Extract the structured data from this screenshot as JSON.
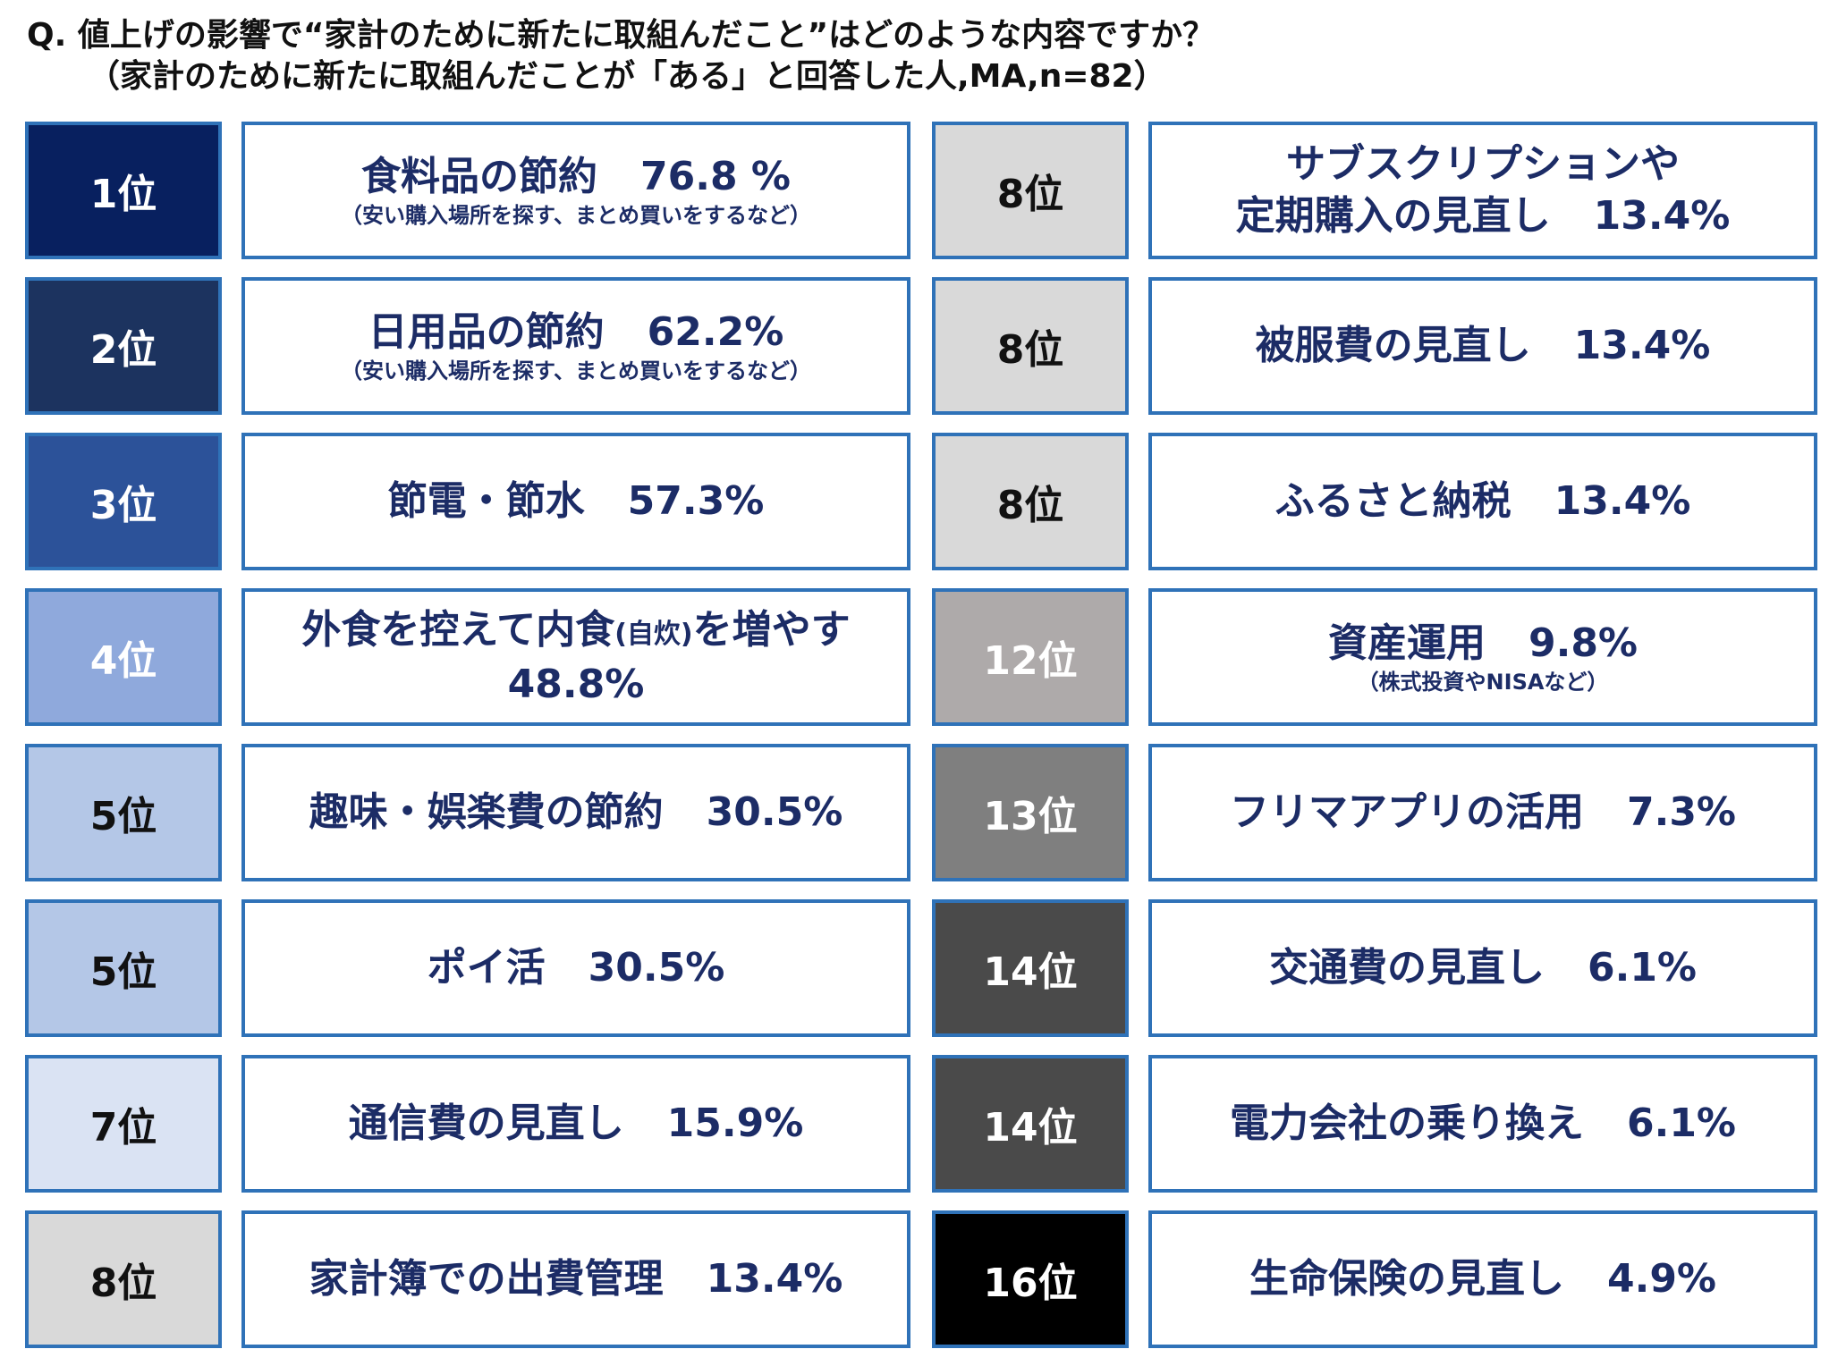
{
  "question": {
    "title": "Q. 値上げの影響で“家計のために新たに取組んだこと”はどのような内容ですか？",
    "subtitle": "（家計のために新たに取組んだことが「ある」と回答した人,MA,n=82）"
  },
  "colors": {
    "border": "#2f72b8",
    "text": "#1c2c66"
  },
  "chart_data": {
    "type": "table",
    "unit": "%",
    "n": 82,
    "items": [
      {
        "rank": "1位",
        "label": "食料品の節約",
        "value": 76.8,
        "value_text": "76.8 %",
        "note": "（安い購入場所を探す、まとめ買いをするなど）",
        "rank_bg": "#08205f",
        "rank_fg": "#ffffff"
      },
      {
        "rank": "2位",
        "label": "日用品の節約",
        "value": 62.2,
        "value_text": "62.2%",
        "note": "（安い購入場所を探す、まとめ買いをするなど）",
        "rank_bg": "#1c335f",
        "rank_fg": "#ffffff"
      },
      {
        "rank": "3位",
        "label": "節電・節水",
        "value": 57.3,
        "value_text": "57.3%",
        "note": "",
        "rank_bg": "#2c5299",
        "rank_fg": "#ffffff"
      },
      {
        "rank": "4位",
        "label": "外食を控えて内食",
        "label_paren": "(自炊)",
        "label_tail": "を増やす",
        "value": 48.8,
        "value_text": "48.8%",
        "note": "",
        "rank_bg": "#8fa9dc",
        "rank_fg": "#ffffff"
      },
      {
        "rank": "5位",
        "label": "趣味・娯楽費の節約",
        "value": 30.5,
        "value_text": "30.5%",
        "note": "",
        "rank_bg": "#b4c7e7",
        "rank_fg": "#111111"
      },
      {
        "rank": "5位",
        "label": "ポイ活",
        "value": 30.5,
        "value_text": "30.5%",
        "note": "",
        "rank_bg": "#b4c7e7",
        "rank_fg": "#111111"
      },
      {
        "rank": "7位",
        "label": "通信費の見直し",
        "value": 15.9,
        "value_text": "15.9%",
        "note": "",
        "rank_bg": "#dae3f3",
        "rank_fg": "#111111"
      },
      {
        "rank": "8位",
        "label": "家計簿での出費管理",
        "value": 13.4,
        "value_text": "13.4%",
        "note": "",
        "rank_bg": "#d9d9d9",
        "rank_fg": "#111111"
      },
      {
        "rank": "8位",
        "label": "サブスクリプションや",
        "label_line2": "定期購入の見直し",
        "value": 13.4,
        "value_text": "13.4%",
        "note": "",
        "rank_bg": "#d9d9d9",
        "rank_fg": "#111111"
      },
      {
        "rank": "8位",
        "label": "被服費の見直し",
        "value": 13.4,
        "value_text": "13.4%",
        "note": "",
        "rank_bg": "#d9d9d9",
        "rank_fg": "#111111"
      },
      {
        "rank": "8位",
        "label": "ふるさと納税",
        "value": 13.4,
        "value_text": "13.4%",
        "note": "",
        "rank_bg": "#d9d9d9",
        "rank_fg": "#111111"
      },
      {
        "rank": "12位",
        "label": "資産運用",
        "value": 9.8,
        "value_text": "9.8%",
        "note": "（株式投資やNISAなど）",
        "rank_bg": "#aeaaaa",
        "rank_fg": "#ffffff"
      },
      {
        "rank": "13位",
        "label": "フリマアプリの活用",
        "value": 7.3,
        "value_text": "7.3%",
        "note": "",
        "rank_bg": "#7f7f7f",
        "rank_fg": "#ffffff"
      },
      {
        "rank": "14位",
        "label": "交通費の見直し",
        "value": 6.1,
        "value_text": "6.1%",
        "note": "",
        "rank_bg": "#4a4a4a",
        "rank_fg": "#ffffff"
      },
      {
        "rank": "14位",
        "label": "電力会社の乗り換え",
        "value": 6.1,
        "value_text": "6.1%",
        "note": "",
        "rank_bg": "#4a4a4a",
        "rank_fg": "#ffffff"
      },
      {
        "rank": "16位",
        "label": "生命保険の見直し",
        "value": 4.9,
        "value_text": "4.9%",
        "note": "",
        "rank_bg": "#000000",
        "rank_fg": "#ffffff"
      }
    ]
  }
}
